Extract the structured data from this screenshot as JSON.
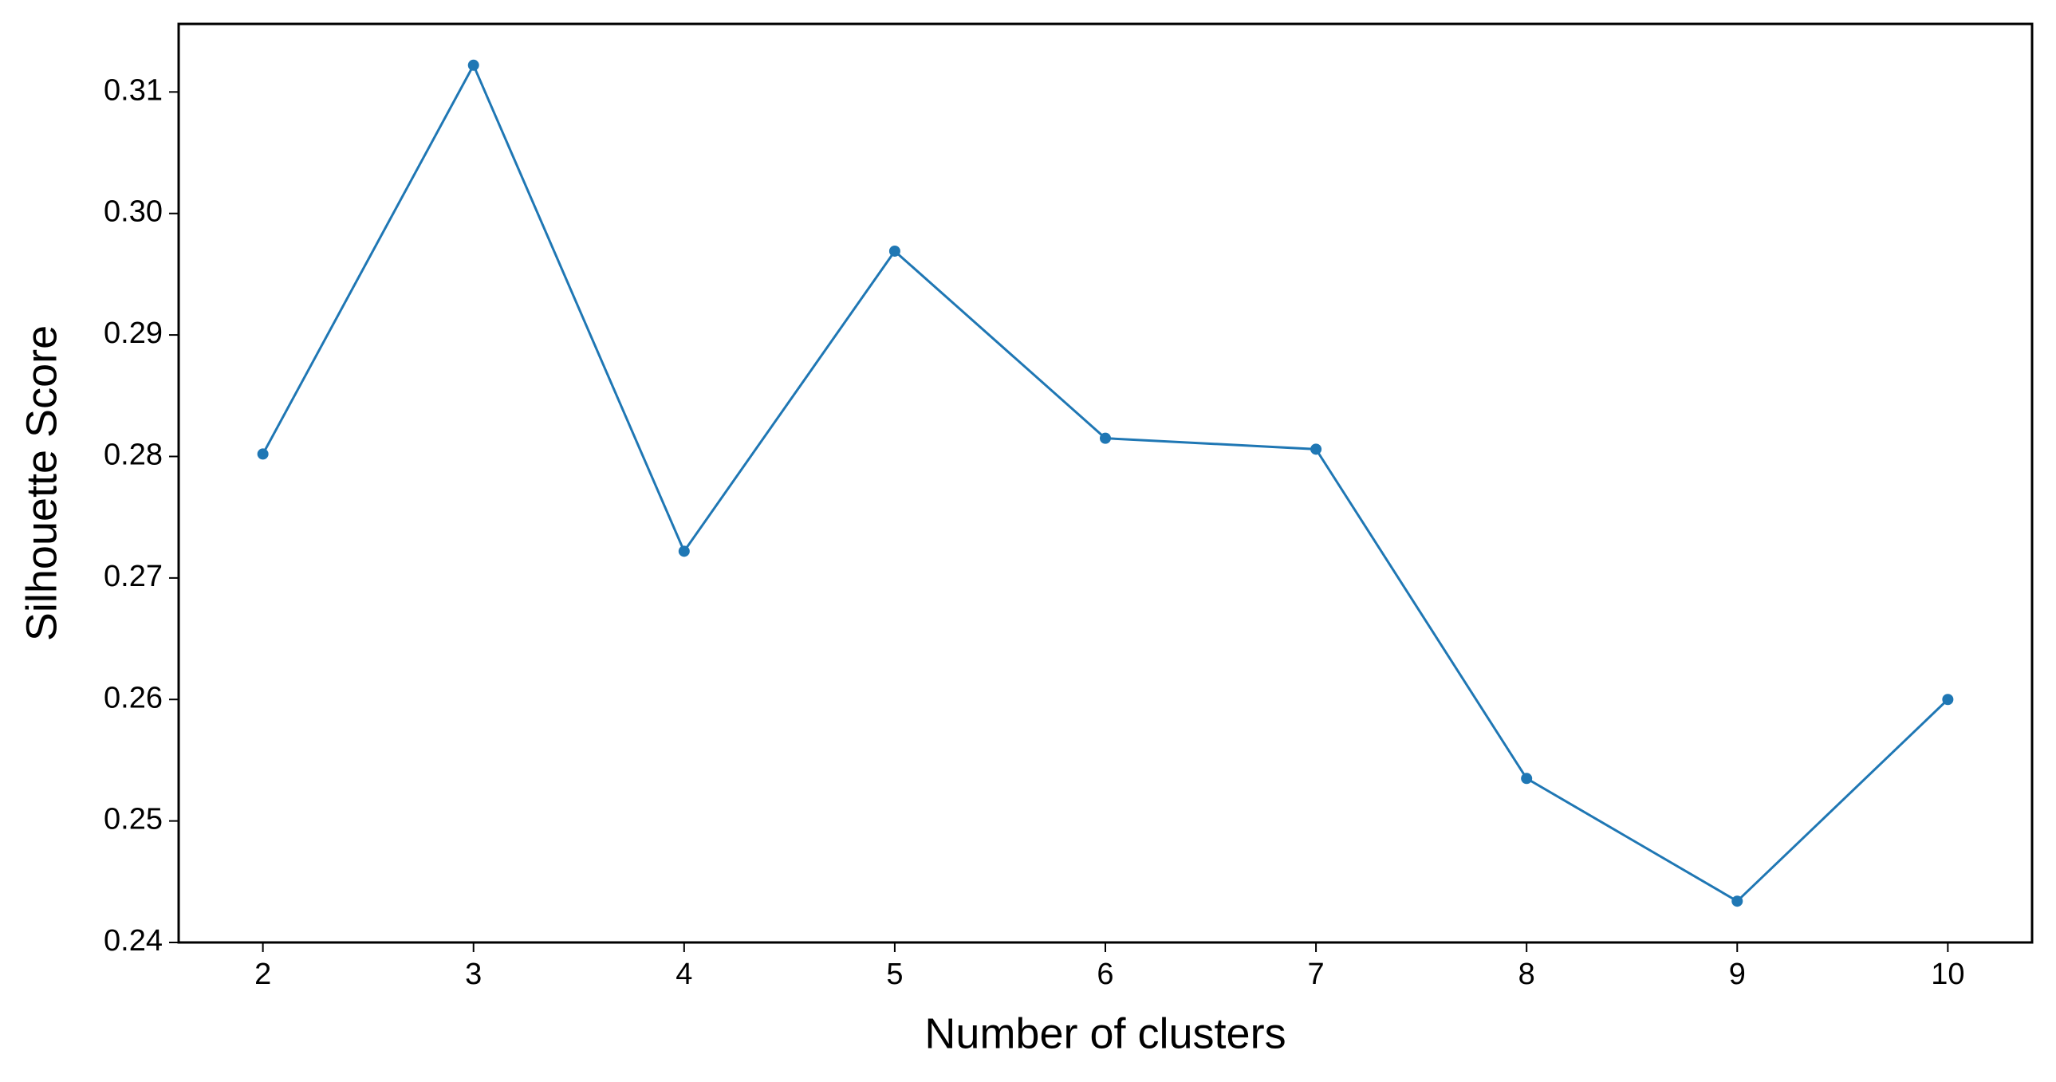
{
  "chart_data": {
    "type": "line",
    "x_label": "Number of clusters",
    "y_label": "Silhouette Score",
    "x": [
      2,
      3,
      4,
      5,
      6,
      7,
      8,
      9,
      10
    ],
    "series": [
      {
        "color": "#1f77b4",
        "values": [
          0.2802,
          0.3122,
          0.2722,
          0.2969,
          0.2815,
          0.2806,
          0.2535,
          0.2434,
          0.26
        ]
      }
    ],
    "xlim": [
      1.6,
      10.4
    ],
    "xticks": [
      2,
      3,
      4,
      5,
      6,
      7,
      8,
      9,
      10
    ],
    "ylim": [
      0.24,
      0.3156
    ],
    "yticks": [
      0.24,
      0.25,
      0.26,
      0.27,
      0.28,
      0.29,
      {
        "value": 0.3,
        "label": "0.30"
      },
      0.31
    ],
    "grid": false
  }
}
